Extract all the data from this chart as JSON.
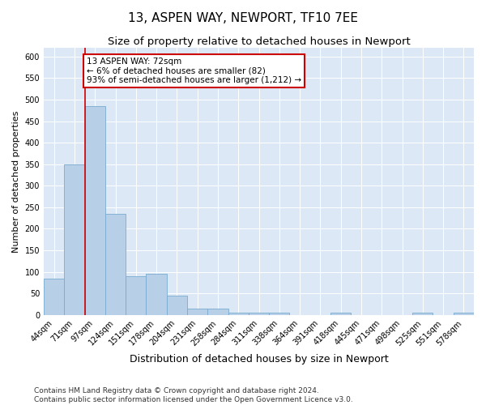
{
  "title1": "13, ASPEN WAY, NEWPORT, TF10 7EE",
  "title2": "Size of property relative to detached houses in Newport",
  "xlabel": "Distribution of detached houses by size in Newport",
  "ylabel": "Number of detached properties",
  "categories": [
    "44sqm",
    "71sqm",
    "97sqm",
    "124sqm",
    "151sqm",
    "178sqm",
    "204sqm",
    "231sqm",
    "258sqm",
    "284sqm",
    "311sqm",
    "338sqm",
    "364sqm",
    "391sqm",
    "418sqm",
    "445sqm",
    "471sqm",
    "498sqm",
    "525sqm",
    "551sqm",
    "578sqm"
  ],
  "values": [
    85,
    350,
    485,
    235,
    90,
    95,
    45,
    15,
    15,
    5,
    5,
    5,
    0,
    0,
    5,
    0,
    0,
    0,
    5,
    0,
    5
  ],
  "bar_color": "#b8cfe8",
  "bar_edge_color": "#7aaad0",
  "subject_line_color": "#cc0000",
  "annotation_text": "13 ASPEN WAY: 72sqm\n← 6% of detached houses are smaller (82)\n93% of semi-detached houses are larger (1,212) →",
  "annotation_box_edgecolor": "#cc0000",
  "ylim": [
    0,
    620
  ],
  "yticks": [
    0,
    50,
    100,
    150,
    200,
    250,
    300,
    350,
    400,
    450,
    500,
    550,
    600
  ],
  "footer1": "Contains HM Land Registry data © Crown copyright and database right 2024.",
  "footer2": "Contains public sector information licensed under the Open Government Licence v3.0.",
  "plot_bg_color": "#dce8f5",
  "title1_fontsize": 11,
  "title2_fontsize": 9.5,
  "xlabel_fontsize": 9,
  "ylabel_fontsize": 8,
  "tick_fontsize": 7,
  "footer_fontsize": 6.5,
  "annotation_fontsize": 7.5
}
